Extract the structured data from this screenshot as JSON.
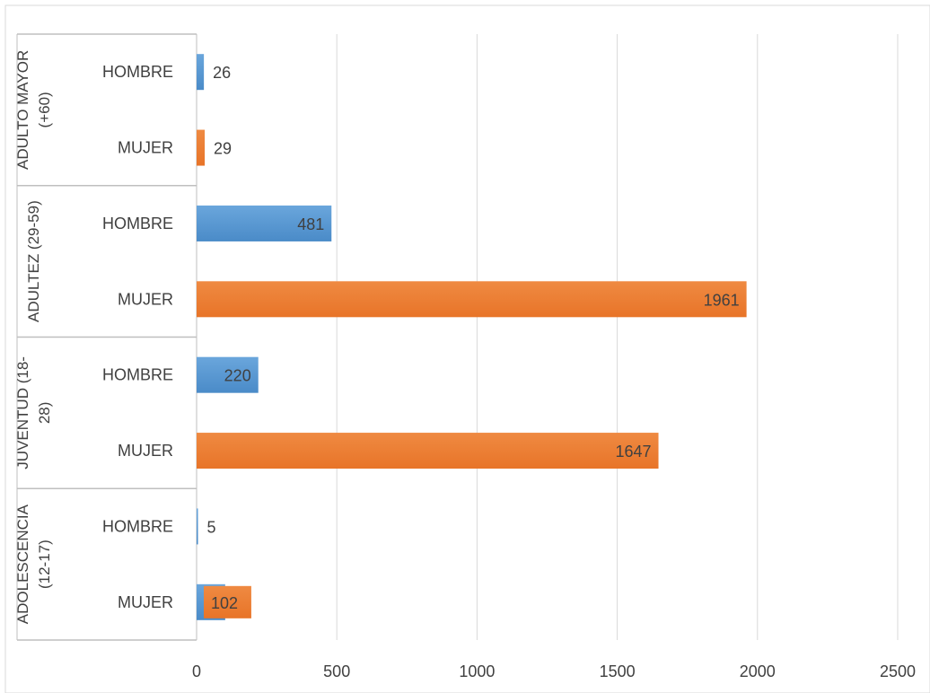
{
  "chart_data": {
    "type": "bar",
    "orientation": "horizontal",
    "title": "",
    "xlabel": "",
    "ylabel": "",
    "xlim": [
      0,
      2500
    ],
    "x_ticks": [
      "0",
      "500",
      "1000",
      "1500",
      "2000",
      "2500"
    ],
    "grid": true,
    "legend": "none",
    "groups": [
      {
        "label": "ADULTO MAYOR (+60)",
        "label_lines": [
          "ADULTO MAYOR",
          "(+60)"
        ],
        "bars": [
          {
            "category": "HOMBRE",
            "value": 26,
            "label": "26"
          },
          {
            "category": "MUJER",
            "value": 29,
            "label": "29"
          }
        ]
      },
      {
        "label": "ADULTEZ (29-59)",
        "label_lines": [
          "ADULTEZ (29-59)"
        ],
        "bars": [
          {
            "category": "HOMBRE",
            "value": 481,
            "label": "481"
          },
          {
            "category": "MUJER",
            "value": 1961,
            "label": "1961"
          }
        ]
      },
      {
        "label": "JUVENTUD (18-28)",
        "label_lines": [
          "JUVENTUD (18-",
          "28)"
        ],
        "bars": [
          {
            "category": "HOMBRE",
            "value": 220,
            "label": "220"
          },
          {
            "category": "MUJER",
            "value": 1647,
            "label": "1647"
          }
        ]
      },
      {
        "label": "ADOLESCENCIA (12-17)",
        "label_lines": [
          "ADOLESCENCIA",
          "(12-17)"
        ],
        "bars": [
          {
            "category": "HOMBRE",
            "value": 5,
            "label": "5"
          },
          {
            "category": "MUJER",
            "value": 102,
            "label": "102",
            "value_extended": 195
          }
        ]
      }
    ],
    "colors": {
      "HOMBRE": "#5b9bd5",
      "MUJER": "#ed7d31",
      "grid": "#d9d9d9",
      "text": "#404040",
      "border": "#bfbfbf"
    }
  }
}
